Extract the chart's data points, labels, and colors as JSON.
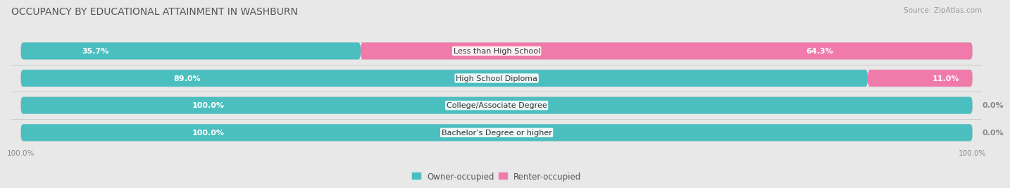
{
  "title": "OCCUPANCY BY EDUCATIONAL ATTAINMENT IN WASHBURN",
  "source": "Source: ZipAtlas.com",
  "categories": [
    "Less than High School",
    "High School Diploma",
    "College/Associate Degree",
    "Bachelor’s Degree or higher"
  ],
  "owner_values": [
    35.7,
    89.0,
    100.0,
    100.0
  ],
  "renter_values": [
    64.3,
    11.0,
    0.0,
    0.0
  ],
  "owner_color": "#4bbfbf",
  "renter_color": "#f07aaa",
  "background_color": "#e8e8e8",
  "bar_bg_color": "#f5f5f5",
  "bar_height": 0.62,
  "bar_gap": 0.38,
  "title_fontsize": 10,
  "source_fontsize": 7.5,
  "value_fontsize": 8,
  "label_fontsize": 8,
  "legend_fontsize": 8.5,
  "axis_label_fontsize": 7.5
}
